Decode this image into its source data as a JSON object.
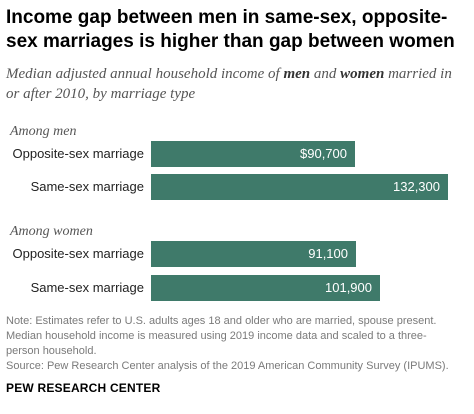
{
  "title": "Income gap between men in same-sex, opposite-sex marriages is higher than gap between women",
  "subtitle": {
    "part1": "Median adjusted annual household income of ",
    "bold1": "men",
    "part2": " and ",
    "bold2": "women",
    "part3": " married in or after 2010, by marriage type"
  },
  "chart_data": {
    "type": "bar",
    "orientation": "horizontal",
    "title": "Income gap between men in same-sex, opposite-sex marriages is higher than gap between women",
    "xlabel": "",
    "ylabel": "",
    "xlim": [
      0,
      132300
    ],
    "grid": false,
    "bar_color": "#3f7a6a",
    "groups": [
      {
        "label": "Among men",
        "bars": [
          {
            "category": "Opposite-sex marriage",
            "value": 90700,
            "label": "$90,700"
          },
          {
            "category": "Same-sex marriage",
            "value": 132300,
            "label": "132,300"
          }
        ]
      },
      {
        "label": "Among women",
        "bars": [
          {
            "category": "Opposite-sex marriage",
            "value": 91100,
            "label": "91,100"
          },
          {
            "category": "Same-sex marriage",
            "value": 101900,
            "label": "101,900"
          }
        ]
      }
    ]
  },
  "note_lines": [
    "Note: Estimates refer to U.S. adults ages 18 and older who are married, spouse present.",
    "Median household income is measured using 2019 income data and scaled to a three-",
    "person household."
  ],
  "source": "Source: Pew Research Center analysis of the 2019 American Community Survey (IPUMS).",
  "brand": "PEW RESEARCH CENTER"
}
